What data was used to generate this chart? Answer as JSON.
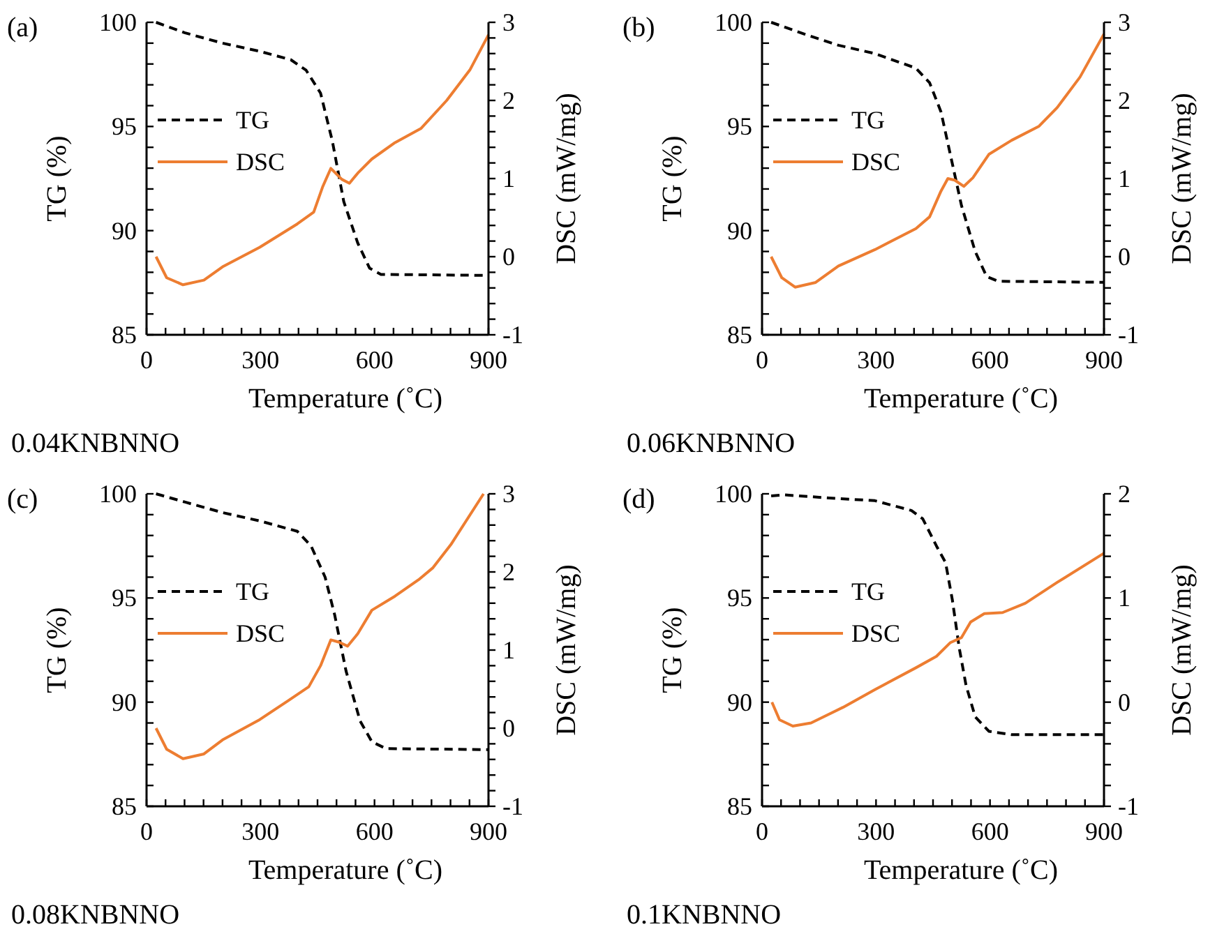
{
  "chart_data": [
    {
      "type": "line",
      "title": "(a)",
      "xlabel": "Temperature (˚C)",
      "ylabel": "TG (%)",
      "y2label": "DSC (mW/mg)",
      "annotations": [
        "0.04KNBNNO"
      ],
      "legend": "left",
      "line_style": "solid",
      "xlim": [
        0,
        900
      ],
      "xticks": [
        0,
        {
          "value": 50,
          "label": null
        },
        {
          "value": 100,
          "label": null
        },
        {
          "value": 150,
          "label": null
        },
        {
          "value": 200,
          "label": null
        },
        {
          "value": 250,
          "label": null
        },
        300,
        {
          "value": 350,
          "label": null
        },
        {
          "value": 400,
          "label": null
        },
        {
          "value": 450,
          "label": null
        },
        {
          "value": 500,
          "label": null
        },
        {
          "value": 550,
          "label": null
        },
        600,
        {
          "value": 650,
          "label": null
        },
        {
          "value": 700,
          "label": null
        },
        {
          "value": 750,
          "label": null
        },
        {
          "value": 800,
          "label": null
        },
        {
          "value": 850,
          "label": null
        },
        900
      ],
      "ylim": [
        85,
        100
      ],
      "yticks": [
        85,
        {
          "value": 86,
          "label": null
        },
        {
          "value": 87,
          "label": null
        },
        {
          "value": 88,
          "label": null
        },
        {
          "value": 89,
          "label": null
        },
        90,
        {
          "value": 91,
          "label": null
        },
        {
          "value": 92,
          "label": null
        },
        {
          "value": 93,
          "label": null
        },
        {
          "value": 94,
          "label": null
        },
        95,
        {
          "value": 96,
          "label": null
        },
        {
          "value": 97,
          "label": null
        },
        {
          "value": 98,
          "label": null
        },
        {
          "value": 99,
          "label": null
        },
        100
      ],
      "y2lim": [
        -1,
        3
      ],
      "y2ticks": [
        -1,
        {
          "value": -0.8,
          "label": null
        },
        {
          "value": -0.6,
          "label": null
        },
        {
          "value": -0.4,
          "label": null
        },
        {
          "value": -0.2,
          "label": null
        },
        0,
        {
          "value": 0.2,
          "label": null
        },
        {
          "value": 0.4,
          "label": null
        },
        {
          "value": 0.6,
          "label": null
        },
        {
          "value": 0.8,
          "label": null
        },
        1,
        {
          "value": 1.2,
          "label": null
        },
        {
          "value": 1.4,
          "label": null
        },
        {
          "value": 1.6,
          "label": null
        },
        {
          "value": 1.8,
          "label": null
        },
        2,
        {
          "value": 2.2,
          "label": null
        },
        {
          "value": 2.4,
          "label": null
        },
        {
          "value": 2.6,
          "label": null
        },
        {
          "value": 2.8,
          "label": null
        },
        3
      ],
      "series": [
        {
          "name": "TG",
          "color": "#000000",
          "line_style": "dashed",
          "x": [
            25,
            100,
            200,
            300,
            380,
            420,
            458,
            489,
            519,
            556,
            587,
            617,
            900
          ],
          "values": [
            100,
            99.5,
            99.0,
            98.6,
            98.2,
            97.7,
            96.6,
            94.3,
            91.4,
            89.4,
            88.2,
            87.9,
            87.85
          ]
        },
        {
          "name": "DSC",
          "color": "#ed7d31",
          "axis": "y2",
          "x": [
            25,
            53,
            96,
            151,
            200,
            298,
            397,
            440,
            464,
            485,
            514,
            534,
            556,
            593,
            654,
            722,
            790,
            851,
            900
          ],
          "values": [
            0.0,
            -0.27,
            -0.36,
            -0.3,
            -0.13,
            0.12,
            0.42,
            0.57,
            0.9,
            1.13,
            0.99,
            0.94,
            1.07,
            1.25,
            1.46,
            1.64,
            2.0,
            2.39,
            2.84
          ]
        }
      ]
    },
    {
      "type": "line",
      "title": "(b)",
      "xlabel": "Temperature (˚C)",
      "ylabel": "TG (%)",
      "y2label": "DSC (mW/mg)",
      "annotations": [
        "0.06KNBNNO"
      ],
      "legend": "left",
      "line_style": "solid",
      "xlim": [
        0,
        900
      ],
      "xticks": [
        0,
        {
          "value": 50,
          "label": null
        },
        {
          "value": 100,
          "label": null
        },
        {
          "value": 150,
          "label": null
        },
        {
          "value": 200,
          "label": null
        },
        {
          "value": 250,
          "label": null
        },
        300,
        {
          "value": 350,
          "label": null
        },
        {
          "value": 400,
          "label": null
        },
        {
          "value": 450,
          "label": null
        },
        {
          "value": 500,
          "label": null
        },
        {
          "value": 550,
          "label": null
        },
        600,
        {
          "value": 650,
          "label": null
        },
        {
          "value": 700,
          "label": null
        },
        {
          "value": 750,
          "label": null
        },
        {
          "value": 800,
          "label": null
        },
        {
          "value": 850,
          "label": null
        },
        900
      ],
      "ylim": [
        85,
        100
      ],
      "yticks": [
        85,
        {
          "value": 86,
          "label": null
        },
        {
          "value": 87,
          "label": null
        },
        {
          "value": 88,
          "label": null
        },
        {
          "value": 89,
          "label": null
        },
        90,
        {
          "value": 91,
          "label": null
        },
        {
          "value": 92,
          "label": null
        },
        {
          "value": 93,
          "label": null
        },
        {
          "value": 94,
          "label": null
        },
        95,
        {
          "value": 96,
          "label": null
        },
        {
          "value": 97,
          "label": null
        },
        {
          "value": 98,
          "label": null
        },
        {
          "value": 99,
          "label": null
        },
        100
      ],
      "y2lim": [
        -1,
        3
      ],
      "y2ticks": [
        -1,
        {
          "value": -0.8,
          "label": null
        },
        {
          "value": -0.6,
          "label": null
        },
        {
          "value": -0.4,
          "label": null
        },
        {
          "value": -0.2,
          "label": null
        },
        0,
        {
          "value": 0.2,
          "label": null
        },
        {
          "value": 0.4,
          "label": null
        },
        {
          "value": 0.6,
          "label": null
        },
        {
          "value": 0.8,
          "label": null
        },
        1,
        {
          "value": 1.2,
          "label": null
        },
        {
          "value": 1.4,
          "label": null
        },
        {
          "value": 1.6,
          "label": null
        },
        {
          "value": 1.8,
          "label": null
        },
        2,
        {
          "value": 2.2,
          "label": null
        },
        {
          "value": 2.4,
          "label": null
        },
        {
          "value": 2.6,
          "label": null
        },
        {
          "value": 2.8,
          "label": null
        },
        3
      ],
      "series": [
        {
          "name": "TG",
          "color": "#000000",
          "line_style": "dashed",
          "x": [
            24,
            117,
            201,
            297,
            405,
            441,
            471,
            495,
            525,
            561,
            591,
            621,
            900
          ],
          "values": [
            100,
            99.4,
            98.9,
            98.5,
            97.8,
            97.1,
            95.7,
            93.7,
            91.2,
            89.0,
            87.8,
            87.57,
            87.52
          ]
        },
        {
          "name": "DSC",
          "color": "#ed7d31",
          "axis": "y2",
          "x": [
            24,
            52,
            87,
            141,
            201,
            297,
            405,
            441,
            471,
            489,
            507,
            531,
            555,
            597,
            657,
            729,
            777,
            837,
            900
          ],
          "values": [
            0.0,
            -0.27,
            -0.39,
            -0.33,
            -0.12,
            0.09,
            0.36,
            0.51,
            0.84,
            1.0,
            0.98,
            0.9,
            1.01,
            1.31,
            1.49,
            1.67,
            1.91,
            2.3,
            2.85
          ]
        }
      ]
    },
    {
      "type": "line",
      "title": "(c)",
      "xlabel": "Temperature (˚C)",
      "ylabel": "TG (%)",
      "y2label": "DSC (mW/mg)",
      "annotations": [
        "0.08KNBNNO"
      ],
      "legend": "left",
      "line_style": "solid",
      "xlim": [
        0,
        900
      ],
      "xticks": [
        0,
        {
          "value": 50,
          "label": null
        },
        {
          "value": 100,
          "label": null
        },
        {
          "value": 150,
          "label": null
        },
        {
          "value": 200,
          "label": null
        },
        {
          "value": 250,
          "label": null
        },
        300,
        {
          "value": 350,
          "label": null
        },
        {
          "value": 400,
          "label": null
        },
        {
          "value": 450,
          "label": null
        },
        {
          "value": 500,
          "label": null
        },
        {
          "value": 550,
          "label": null
        },
        600,
        {
          "value": 650,
          "label": null
        },
        {
          "value": 700,
          "label": null
        },
        {
          "value": 750,
          "label": null
        },
        {
          "value": 800,
          "label": null
        },
        {
          "value": 850,
          "label": null
        },
        900
      ],
      "ylim": [
        85,
        100
      ],
      "yticks": [
        85,
        {
          "value": 86,
          "label": null
        },
        {
          "value": 87,
          "label": null
        },
        {
          "value": 88,
          "label": null
        },
        {
          "value": 89,
          "label": null
        },
        90,
        {
          "value": 91,
          "label": null
        },
        {
          "value": 92,
          "label": null
        },
        {
          "value": 93,
          "label": null
        },
        {
          "value": 94,
          "label": null
        },
        95,
        {
          "value": 96,
          "label": null
        },
        {
          "value": 97,
          "label": null
        },
        {
          "value": 98,
          "label": null
        },
        {
          "value": 99,
          "label": null
        },
        100
      ],
      "y2lim": [
        -1,
        3
      ],
      "y2ticks": [
        -1,
        {
          "value": -0.8,
          "label": null
        },
        {
          "value": -0.6,
          "label": null
        },
        {
          "value": -0.4,
          "label": null
        },
        {
          "value": -0.2,
          "label": null
        },
        0,
        {
          "value": 0.2,
          "label": null
        },
        {
          "value": 0.4,
          "label": null
        },
        {
          "value": 0.6,
          "label": null
        },
        {
          "value": 0.8,
          "label": null
        },
        1,
        {
          "value": 1.2,
          "label": null
        },
        {
          "value": 1.4,
          "label": null
        },
        {
          "value": 1.6,
          "label": null
        },
        {
          "value": 1.8,
          "label": null
        },
        2,
        {
          "value": 2.2,
          "label": null
        },
        {
          "value": 2.4,
          "label": null
        },
        {
          "value": 2.6,
          "label": null
        },
        {
          "value": 2.8,
          "label": null
        },
        3
      ],
      "series": [
        {
          "name": "TG",
          "color": "#000000",
          "line_style": "dashed",
          "x": [
            25,
            102,
            200,
            298,
            397,
            433,
            470,
            495,
            525,
            562,
            593,
            630,
            900
          ],
          "values": [
            100,
            99.6,
            99.1,
            98.7,
            98.2,
            97.5,
            96.0,
            94.2,
            91.5,
            89.1,
            88.1,
            87.77,
            87.72
          ]
        },
        {
          "name": "DSC",
          "color": "#ed7d31",
          "axis": "y2",
          "x": [
            25,
            53,
            96,
            151,
            200,
            298,
            372,
            427,
            458,
            485,
            507,
            529,
            556,
            593,
            654,
            716,
            753,
            801,
            887
          ],
          "values": [
            0.0,
            -0.27,
            -0.39,
            -0.33,
            -0.15,
            0.11,
            0.35,
            0.53,
            0.8,
            1.13,
            1.1,
            1.05,
            1.21,
            1.51,
            1.69,
            1.9,
            2.05,
            2.35,
            3.0
          ]
        }
      ]
    },
    {
      "type": "line",
      "title": "(d)",
      "xlabel": "Temperature (˚C)",
      "ylabel": "TG (%)",
      "y2label": "DSC (mW/mg)",
      "annotations": [
        "0.1KNBNNO"
      ],
      "legend": "left",
      "line_style": "solid",
      "xlim": [
        0,
        900
      ],
      "xticks": [
        0,
        {
          "value": 50,
          "label": null
        },
        {
          "value": 100,
          "label": null
        },
        {
          "value": 150,
          "label": null
        },
        {
          "value": 200,
          "label": null
        },
        {
          "value": 250,
          "label": null
        },
        300,
        {
          "value": 350,
          "label": null
        },
        {
          "value": 400,
          "label": null
        },
        {
          "value": 450,
          "label": null
        },
        {
          "value": 500,
          "label": null
        },
        {
          "value": 550,
          "label": null
        },
        600,
        {
          "value": 650,
          "label": null
        },
        {
          "value": 700,
          "label": null
        },
        {
          "value": 750,
          "label": null
        },
        {
          "value": 800,
          "label": null
        },
        {
          "value": 850,
          "label": null
        },
        900
      ],
      "ylim": [
        85,
        100
      ],
      "yticks": [
        85,
        {
          "value": 86,
          "label": null
        },
        {
          "value": 87,
          "label": null
        },
        {
          "value": 88,
          "label": null
        },
        {
          "value": 89,
          "label": null
        },
        90,
        {
          "value": 91,
          "label": null
        },
        {
          "value": 92,
          "label": null
        },
        {
          "value": 93,
          "label": null
        },
        {
          "value": 94,
          "label": null
        },
        95,
        {
          "value": 96,
          "label": null
        },
        {
          "value": 97,
          "label": null
        },
        {
          "value": 98,
          "label": null
        },
        {
          "value": 99,
          "label": null
        },
        100
      ],
      "y2lim": [
        -1,
        2
      ],
      "y2ticks": [
        -1,
        {
          "value": -0.8,
          "label": null
        },
        {
          "value": -0.6,
          "label": null
        },
        {
          "value": -0.4,
          "label": null
        },
        {
          "value": -0.2,
          "label": null
        },
        0,
        {
          "value": 0.2,
          "label": null
        },
        {
          "value": 0.4,
          "label": null
        },
        {
          "value": 0.6,
          "label": null
        },
        {
          "value": 0.8,
          "label": null
        },
        1,
        {
          "value": 1.2,
          "label": null
        },
        {
          "value": 1.4,
          "label": null
        },
        {
          "value": 1.6,
          "label": null
        },
        {
          "value": 1.8,
          "label": null
        },
        2
      ],
      "series": [
        {
          "name": "TG",
          "color": "#000000",
          "line_style": "dashed",
          "x": [
            24,
            58,
            177,
            297,
            393,
            423,
            459,
            483,
            501,
            519,
            537,
            561,
            597,
            657,
            900
          ],
          "values": [
            99.9,
            99.95,
            99.8,
            99.67,
            99.2,
            98.8,
            97.5,
            96.7,
            94.9,
            92.6,
            90.8,
            89.3,
            88.6,
            88.44,
            88.44
          ]
        },
        {
          "name": "DSC",
          "color": "#ed7d31",
          "axis": "y2",
          "x": [
            26,
            46,
            81,
            129,
            213,
            297,
            405,
            459,
            495,
            525,
            549,
            585,
            633,
            693,
            777,
            900
          ],
          "values": [
            0.0,
            -0.17,
            -0.23,
            -0.2,
            -0.05,
            0.12,
            0.33,
            0.44,
            0.57,
            0.62,
            0.77,
            0.85,
            0.86,
            0.95,
            1.15,
            1.43
          ]
        }
      ]
    }
  ]
}
